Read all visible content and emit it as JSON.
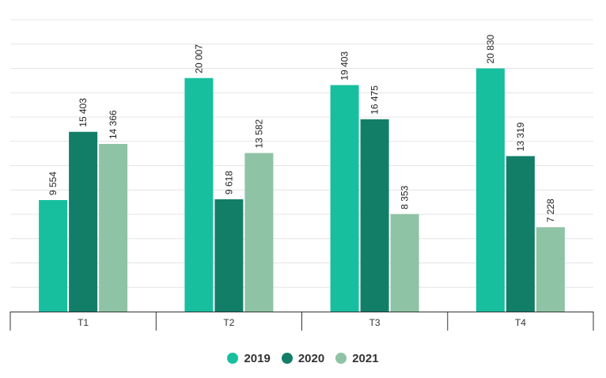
{
  "chart_data": {
    "type": "bar",
    "categories": [
      "T1",
      "T2",
      "T3",
      "T4"
    ],
    "series": [
      {
        "name": "2019",
        "color": "#17bf9e",
        "values": [
          9554,
          20007,
          19403,
          20830
        ],
        "labels": [
          "9 554",
          "20 007",
          "19 403",
          "20 830"
        ]
      },
      {
        "name": "2020",
        "color": "#137e68",
        "values": [
          15403,
          9618,
          16475,
          13319
        ],
        "labels": [
          "15 403",
          "9 618",
          "16 475",
          "13 319"
        ]
      },
      {
        "name": "2021",
        "color": "#8fc3a5",
        "values": [
          14366,
          13582,
          8353,
          7228
        ],
        "labels": [
          "14 366",
          "13 582",
          "8 353",
          "7 228"
        ]
      }
    ],
    "ylim": [
      0,
      25000
    ],
    "grid": true,
    "legend_position": "bottom"
  }
}
